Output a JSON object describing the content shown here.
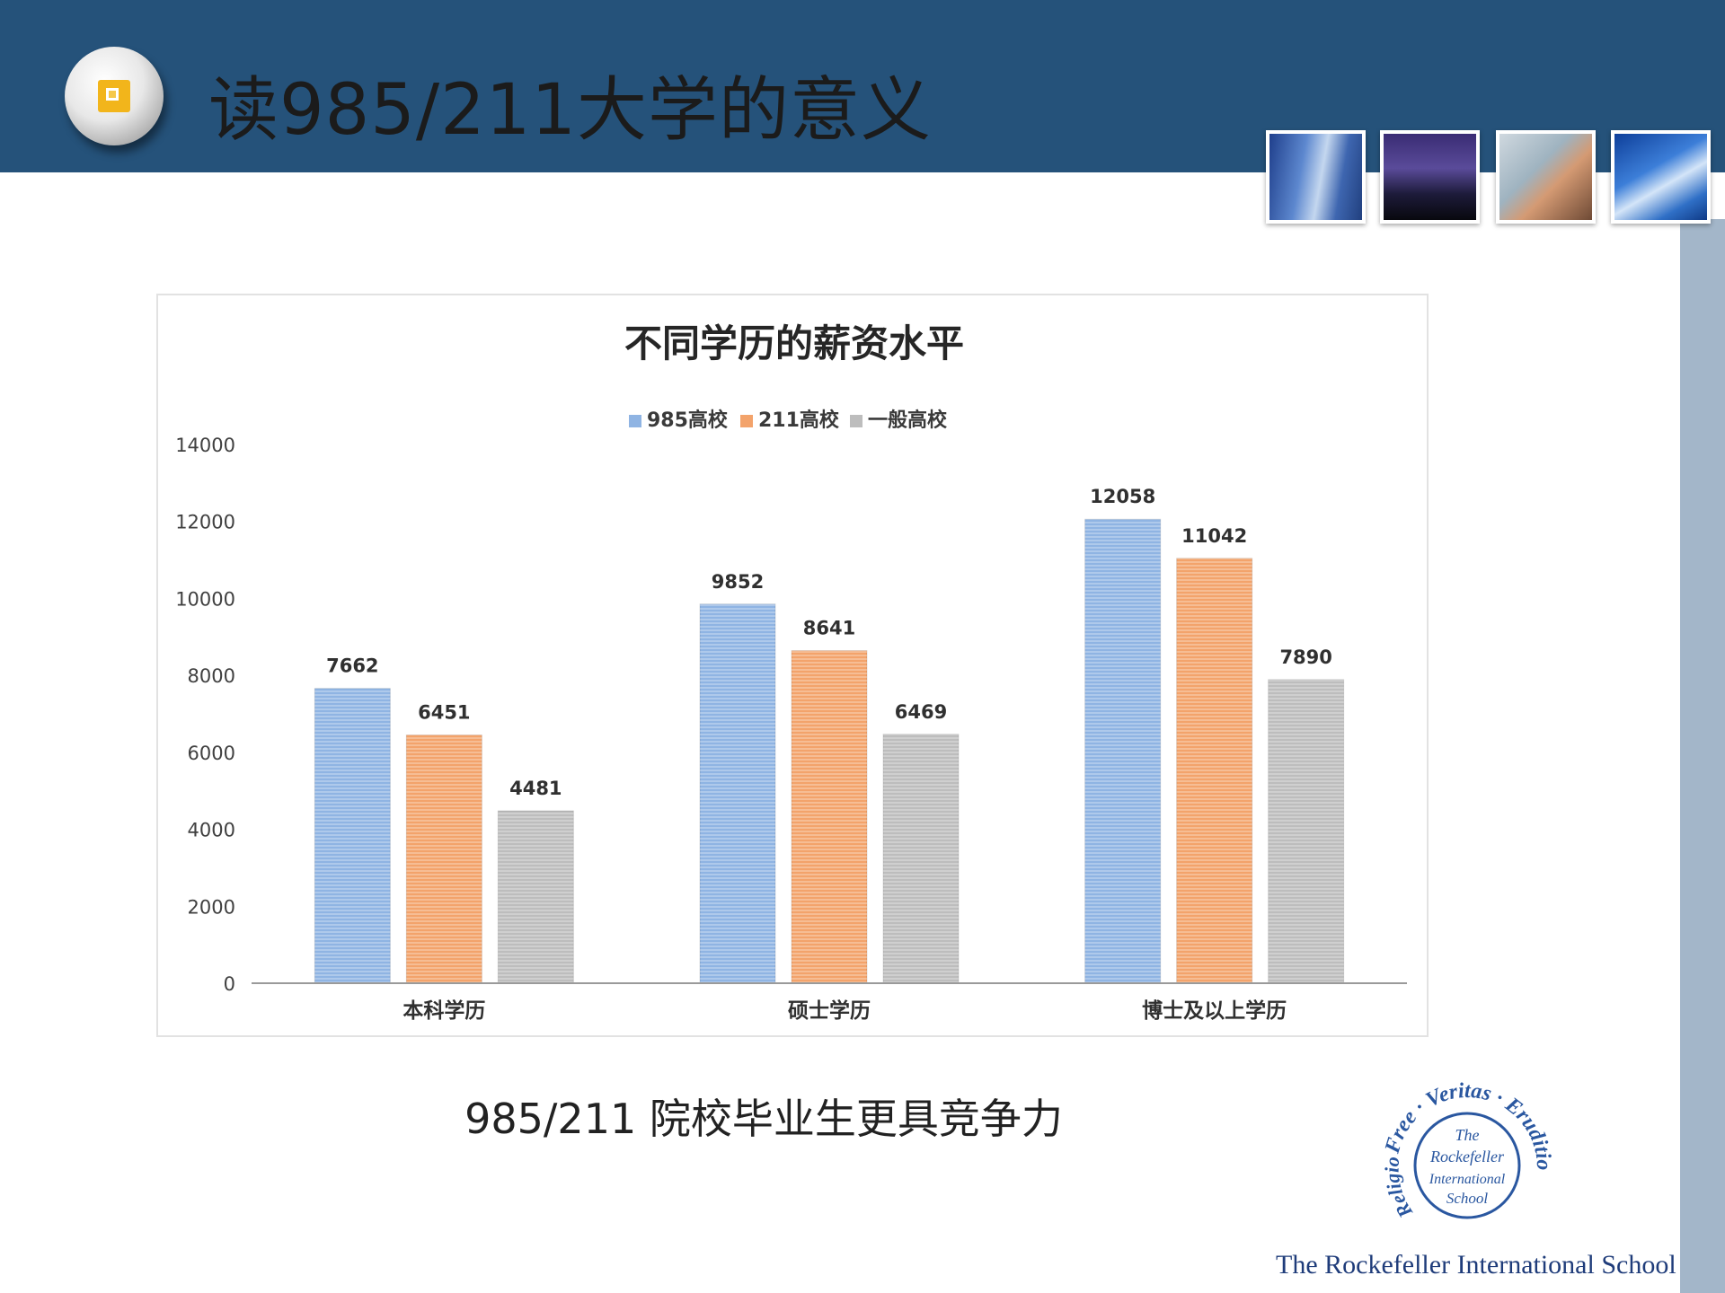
{
  "slide": {
    "title": "读985/211大学的意义",
    "caption": "985/211 院校毕业生更具竞争力"
  },
  "colors": {
    "header": "#25527a",
    "side_bar": "#a3b6c9",
    "badge_accent": "#f2b51b",
    "series_985": "#8fb4e3",
    "series_211": "#f3a36b",
    "series_general": "#bdbdbd"
  },
  "icons": [
    "slide-badge-icon"
  ],
  "footer": {
    "school_name": "The Rockefeller International School",
    "seal_text": [
      "Free",
      "Veritas",
      "Eruditio",
      "Religio",
      "The",
      "Rockefeller",
      "International",
      "School"
    ]
  },
  "chart_data": {
    "type": "bar",
    "title": "不同学历的薪资水平",
    "categories": [
      "本科学历",
      "硕士学历",
      "博士及以上学历"
    ],
    "series": [
      {
        "name": "985高校",
        "values": [
          7662,
          9852,
          12058
        ],
        "color": "#8fb4e3"
      },
      {
        "name": "211高校",
        "values": [
          6451,
          8641,
          11042
        ],
        "color": "#f3a36b"
      },
      {
        "name": "一般高校",
        "values": [
          4481,
          6469,
          7890
        ],
        "color": "#bdbdbd"
      }
    ],
    "yticks": [
      "0",
      "2000",
      "4000",
      "6000",
      "8000",
      "10000",
      "12000",
      "14000"
    ],
    "ylim": [
      0,
      14000
    ],
    "legend_position": "top",
    "grid": false,
    "data_labels": true
  }
}
